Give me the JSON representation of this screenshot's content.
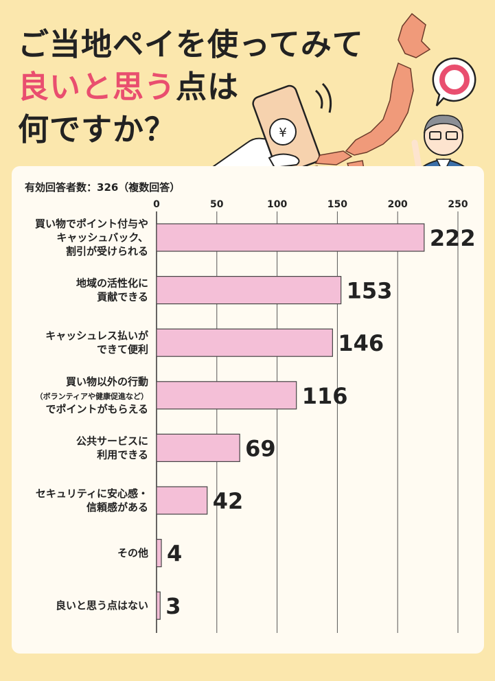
{
  "title": {
    "line1": "ご当地ペイを使ってみて",
    "line2_accent": "良いと思う",
    "line2_rest": "点は",
    "line3": "何ですか？"
  },
  "respondents_note": "有効回答者数：326（複数回答）",
  "phone_symbol": "¥",
  "colors": {
    "background": "#fbe7ad",
    "bar": "#f4bfd7",
    "accent": "#e94e6f",
    "map": "#f09a7a"
  },
  "chart_data": {
    "type": "bar",
    "orientation": "horizontal",
    "categories": [
      [
        "買い物でポイント付与や",
        "キャッシュバック、",
        "割引が受けられる"
      ],
      [
        "地域の活性化に",
        "貢献できる"
      ],
      [
        "キャッシュレス払いが",
        "できて便利"
      ],
      [
        "買い物以外の行動",
        "（ボランティアや健康促進など）",
        "でポイントがもらえる"
      ],
      [
        "公共サービスに",
        "利用できる"
      ],
      [
        "セキュリティに安心感・",
        "信頼感がある"
      ],
      [
        "その他"
      ],
      [
        "良いと思う点はない"
      ]
    ],
    "values": [
      222,
      153,
      146,
      116,
      69,
      42,
      4,
      3
    ],
    "xlim": [
      0,
      250
    ],
    "xticks": [
      0,
      50,
      100,
      150,
      200,
      250
    ],
    "grid": true
  }
}
